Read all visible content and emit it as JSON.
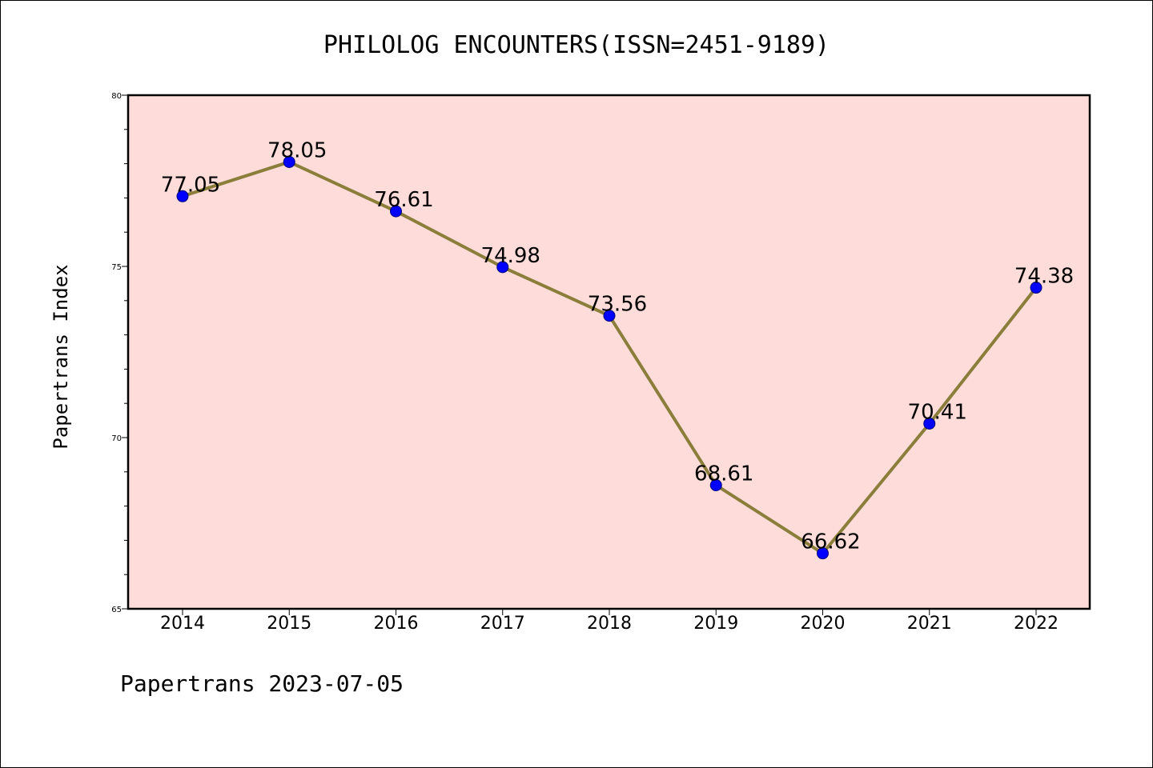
{
  "chart_data": {
    "type": "line",
    "title": "PHILOLOG ENCOUNTERS(ISSN=2451-9189)",
    "ylabel": "Papertrans Index",
    "xlabel": "",
    "footer": "Papertrans 2023-07-05",
    "categories": [
      "2014",
      "2015",
      "2016",
      "2017",
      "2018",
      "2019",
      "2020",
      "2021",
      "2022"
    ],
    "series": [
      {
        "values": [
          77.05,
          78.05,
          76.61,
          74.98,
          73.56,
          68.61,
          66.62,
          70.41,
          74.38
        ],
        "data_labels": [
          "77.05",
          "78.05",
          "76.61",
          "74.98",
          "73.56",
          "68.61",
          "66.62",
          "70.41",
          "74.38"
        ]
      }
    ],
    "ylim": [
      65,
      80
    ],
    "yticks": [
      "65",
      "70",
      "75",
      "80"
    ],
    "grid": false,
    "colors": {
      "plot_background": "#fddcda",
      "line": "#8b7d3a",
      "marker": "#0000ff"
    }
  }
}
